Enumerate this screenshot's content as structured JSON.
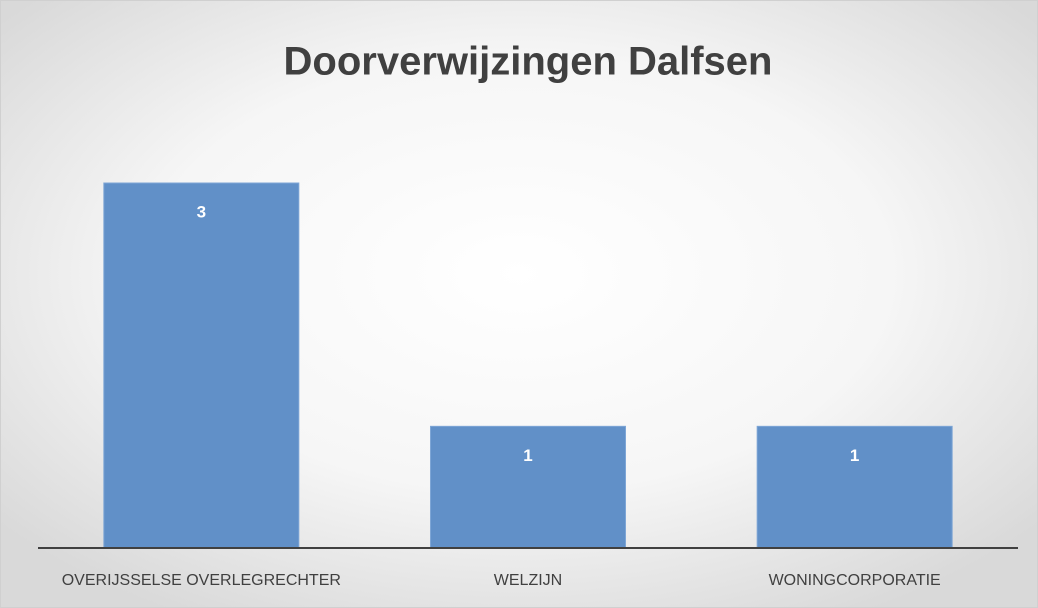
{
  "chart_data": {
    "type": "bar",
    "title": "Doorverwijzingen Dalfsen",
    "categories": [
      "OVERIJSSELSE OVERLEGRECHTER",
      "WELZIJN",
      "WONINGCORPORATIE"
    ],
    "values": [
      3,
      1,
      1
    ],
    "color": "#6190c8"
  }
}
